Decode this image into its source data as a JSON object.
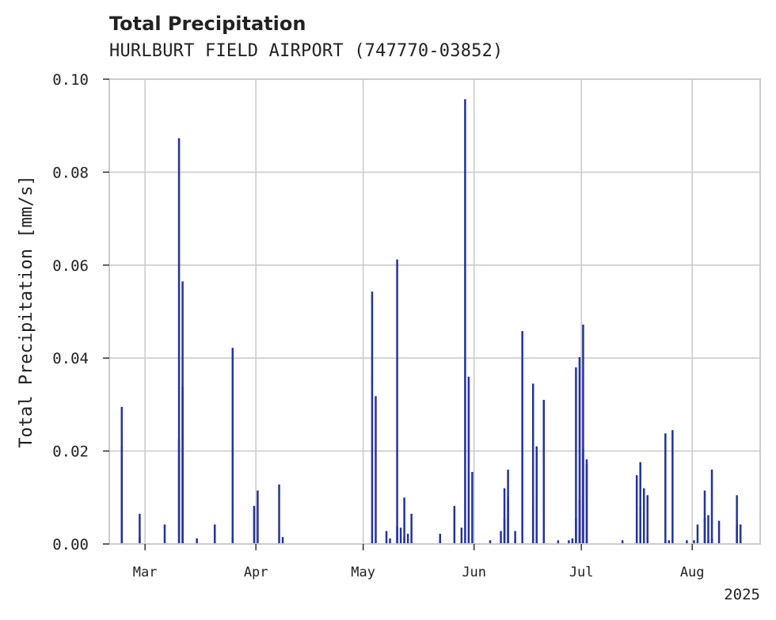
{
  "chart_data": {
    "type": "bar",
    "title": "Total Precipitation",
    "subtitle": "HURLBURT FIELD AIRPORT (747770-03852)",
    "ylabel": "Total Precipitation [mm/s]",
    "xlabel": "",
    "x_range": [
      "2025-02-19",
      "2025-08-20"
    ],
    "ylim": [
      0,
      0.1
    ],
    "yticks": [
      "0.00",
      "0.02",
      "0.04",
      "0.06",
      "0.08",
      "0.10"
    ],
    "ytick_values": [
      0,
      0.02,
      0.04,
      0.06,
      0.08,
      0.1
    ],
    "xticks": [
      {
        "date": "2025-03-01",
        "label": "Mar"
      },
      {
        "date": "2025-04-01",
        "label": "Apr"
      },
      {
        "date": "2025-05-01",
        "label": "May"
      },
      {
        "date": "2025-06-01",
        "label": "Jun"
      },
      {
        "date": "2025-07-01",
        "label": "Jul"
      },
      {
        "date": "2025-08-01",
        "label": "Aug"
      }
    ],
    "year_label": "2025",
    "grid": true,
    "series": [
      {
        "color": "#24339a",
        "points": [
          [
            "2025-02-22",
            0.0055
          ],
          [
            "2025-02-22",
            0.0295
          ],
          [
            "2025-02-22",
            0.021
          ],
          [
            "2025-02-27",
            0.0015
          ],
          [
            "2025-02-27",
            0.0065
          ],
          [
            "2025-03-06",
            0.0042
          ],
          [
            "2025-03-10",
            0.0225
          ],
          [
            "2025-03-10",
            0.0873
          ],
          [
            "2025-03-11",
            0.0565
          ],
          [
            "2025-03-11",
            0.0338
          ],
          [
            "2025-03-15",
            0.0012
          ],
          [
            "2025-03-20",
            0.0042
          ],
          [
            "2025-03-25",
            0.0015
          ],
          [
            "2025-03-25",
            0.0422
          ],
          [
            "2025-03-31",
            0.0082
          ],
          [
            "2025-04-01",
            0.0115
          ],
          [
            "2025-04-07",
            0.0128
          ],
          [
            "2025-04-08",
            0.0015
          ],
          [
            "2025-05-03",
            0.0543
          ],
          [
            "2025-05-04",
            0.0318
          ],
          [
            "2025-05-07",
            0.0028
          ],
          [
            "2025-05-08",
            0.0012
          ],
          [
            "2025-05-10",
            0.0612
          ],
          [
            "2025-05-10",
            0.0038
          ],
          [
            "2025-05-11",
            0.0035
          ],
          [
            "2025-05-12",
            0.01
          ],
          [
            "2025-05-12",
            0.0015
          ],
          [
            "2025-05-13",
            0.0022
          ],
          [
            "2025-05-14",
            0.0065
          ],
          [
            "2025-05-22",
            0.0022
          ],
          [
            "2025-05-26",
            0.0082
          ],
          [
            "2025-05-28",
            0.0035
          ],
          [
            "2025-05-29",
            0.0957
          ],
          [
            "2025-05-30",
            0.036
          ],
          [
            "2025-05-31",
            0.0155
          ],
          [
            "2025-06-05",
            0.0008
          ],
          [
            "2025-06-08",
            0.0028
          ],
          [
            "2025-06-09",
            0.0055
          ],
          [
            "2025-06-09",
            0.012
          ],
          [
            "2025-06-10",
            0.016
          ],
          [
            "2025-06-10",
            0.0102
          ],
          [
            "2025-06-12",
            0.0008
          ],
          [
            "2025-06-12",
            0.0028
          ],
          [
            "2025-06-14",
            0.0458
          ],
          [
            "2025-06-17",
            0.0345
          ],
          [
            "2025-06-17",
            0.0082
          ],
          [
            "2025-06-18",
            0.021
          ],
          [
            "2025-06-18",
            0.0015
          ],
          [
            "2025-06-20",
            0.0195
          ],
          [
            "2025-06-20",
            0.031
          ],
          [
            "2025-06-24",
            0.0008
          ],
          [
            "2025-06-27",
            0.0008
          ],
          [
            "2025-06-28",
            0.0012
          ],
          [
            "2025-06-29",
            0.0055
          ],
          [
            "2025-06-29",
            0.038
          ],
          [
            "2025-06-30",
            0.0402
          ],
          [
            "2025-06-30",
            0.0095
          ],
          [
            "2025-07-01",
            0.0472
          ],
          [
            "2025-07-01",
            0.0205
          ],
          [
            "2025-07-02",
            0.0182
          ],
          [
            "2025-07-02",
            0.0172
          ],
          [
            "2025-07-12",
            0.0008
          ],
          [
            "2025-07-16",
            0.0148
          ],
          [
            "2025-07-17",
            0.0082
          ],
          [
            "2025-07-17",
            0.0176
          ],
          [
            "2025-07-18",
            0.012
          ],
          [
            "2025-07-19",
            0.0105
          ],
          [
            "2025-07-24",
            0.0238
          ],
          [
            "2025-07-24",
            0.0008
          ],
          [
            "2025-07-25",
            0.0008
          ],
          [
            "2025-07-26",
            0.0245
          ],
          [
            "2025-07-30",
            0.0008
          ],
          [
            "2025-08-01",
            0.0008
          ],
          [
            "2025-08-02",
            0.0042
          ],
          [
            "2025-08-04",
            0.0115
          ],
          [
            "2025-08-04",
            0.0055
          ],
          [
            "2025-08-05",
            0.0062
          ],
          [
            "2025-08-05",
            0.0008
          ],
          [
            "2025-08-06",
            0.0012
          ],
          [
            "2025-08-06",
            0.016
          ],
          [
            "2025-08-08",
            0.005
          ],
          [
            "2025-08-13",
            0.0042
          ],
          [
            "2025-08-13",
            0.0105
          ],
          [
            "2025-08-14",
            0.0042
          ],
          [
            "2025-08-14",
            0.0008
          ]
        ]
      }
    ]
  },
  "colors": {
    "bar": "#24339a",
    "grid": "#cccccc",
    "axes_frame": "#cccccc",
    "text": "#222222"
  }
}
